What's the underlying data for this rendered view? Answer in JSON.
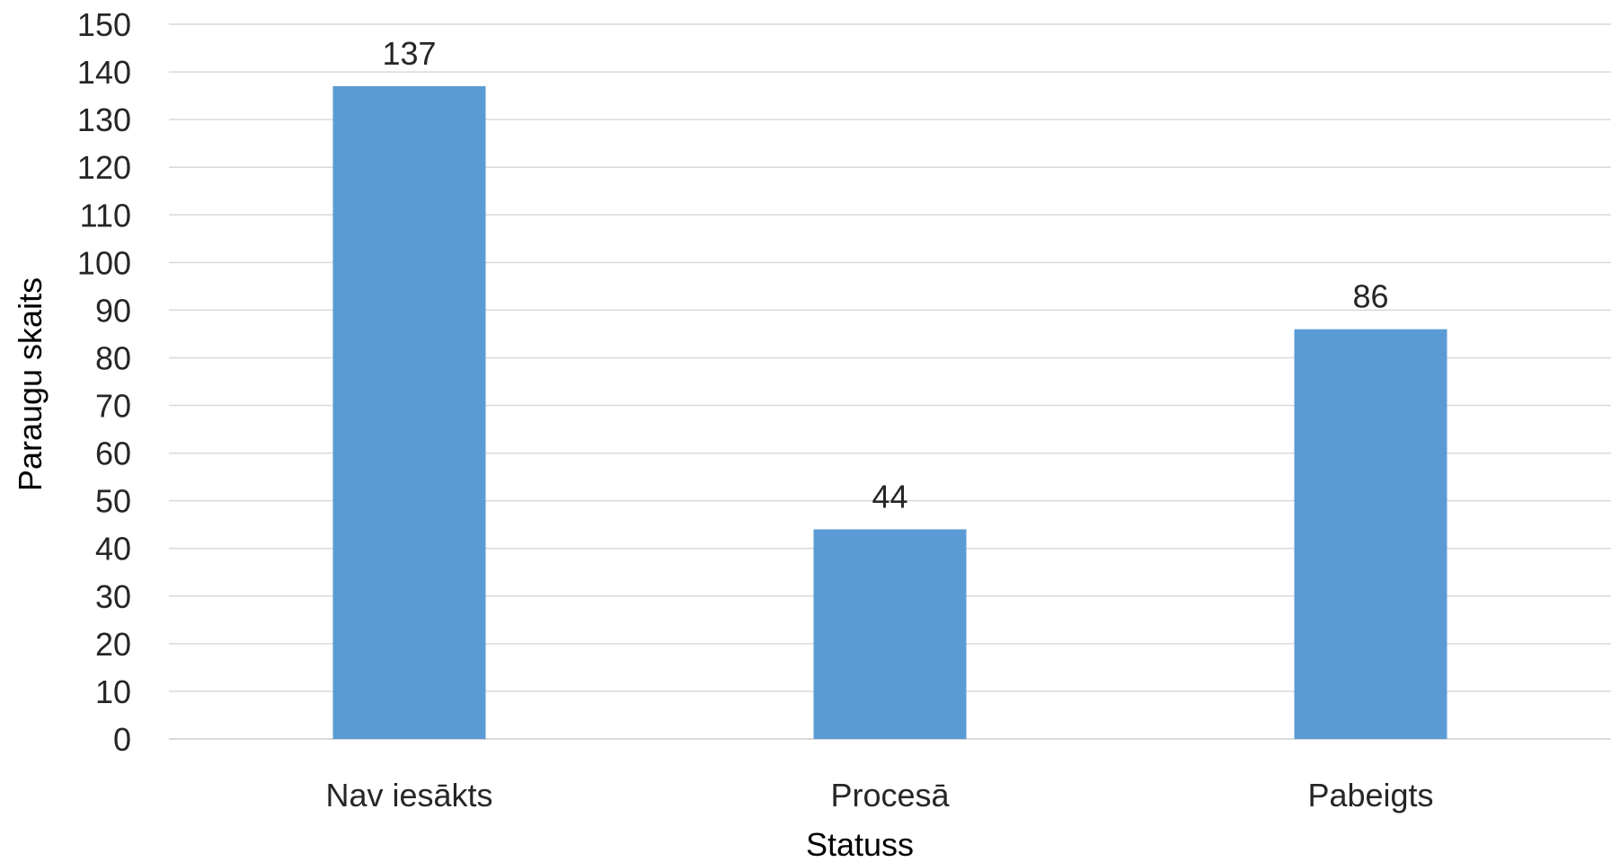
{
  "chart_data": {
    "type": "bar",
    "title": "",
    "xlabel": "Statuss",
    "ylabel": "Paraugu skaits",
    "categories": [
      "Nav iesākts",
      "Procesā",
      "Pabeigts"
    ],
    "values": [
      137,
      44,
      86
    ],
    "data_labels": [
      "137",
      "44",
      "86"
    ],
    "ylim": [
      0,
      150
    ],
    "yticks": [
      0,
      10,
      20,
      30,
      40,
      50,
      60,
      70,
      80,
      90,
      100,
      110,
      120,
      130,
      140,
      150
    ],
    "grid": true,
    "legend": "none",
    "bar_color": "#5b9bd5",
    "grid_color": "#d9d9d9"
  }
}
